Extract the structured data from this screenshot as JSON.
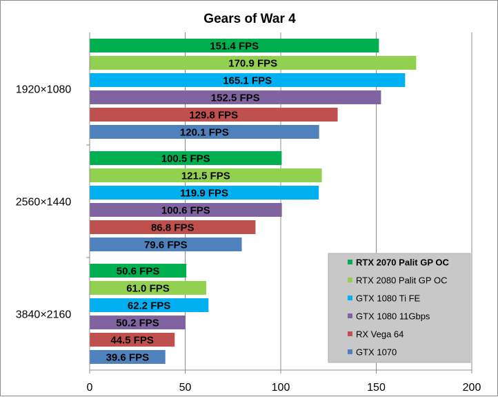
{
  "chart_data": {
    "type": "bar",
    "orientation": "horizontal",
    "title": "Gears of War 4",
    "xlabel": "",
    "ylabel": "",
    "xlim": [
      0,
      200
    ],
    "x_ticks": [
      0,
      50,
      100,
      150,
      200
    ],
    "grid": true,
    "legend_position": "bottom-right",
    "value_suffix": " FPS",
    "categories": [
      "1920×1080",
      "2560×1440",
      "3840×2160"
    ],
    "series": [
      {
        "name": "RTX 2070 Palit GP OC",
        "color": "#00b050",
        "bold_legend": true,
        "values": [
          151.4,
          100.5,
          50.6
        ]
      },
      {
        "name": "RTX 2080 Palit GP OC",
        "color": "#92d050",
        "bold_legend": false,
        "values": [
          170.9,
          121.5,
          61.0
        ]
      },
      {
        "name": "GTX 1080 Ti FE",
        "color": "#00b0f0",
        "bold_legend": false,
        "values": [
          165.1,
          119.9,
          62.2
        ]
      },
      {
        "name": "GTX 1080 11Gbps",
        "color": "#8064a2",
        "bold_legend": false,
        "values": [
          152.5,
          100.6,
          50.2
        ]
      },
      {
        "name": "RX Vega 64",
        "color": "#c0504d",
        "bold_legend": false,
        "values": [
          129.8,
          86.8,
          44.5
        ]
      },
      {
        "name": "GTX 1070",
        "color": "#4f81bd",
        "bold_legend": false,
        "values": [
          120.1,
          79.6,
          39.6
        ]
      }
    ]
  }
}
